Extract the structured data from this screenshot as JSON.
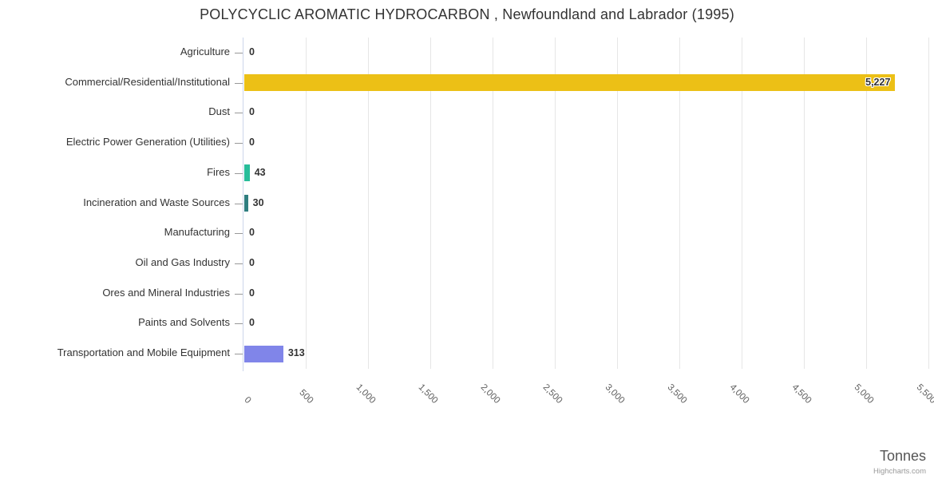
{
  "chart_data": {
    "type": "bar",
    "orientation": "horizontal",
    "title": "POLYCYCLIC AROMATIC HYDROCARBON , Newfoundland and Labrador (1995)",
    "categories": [
      "Agriculture",
      "Commercial/Residential/Institutional",
      "Dust",
      "Electric Power Generation (Utilities)",
      "Fires",
      "Incineration and Waste Sources",
      "Manufacturing",
      "Oil and Gas Industry",
      "Ores and Mineral Industries",
      "Paints and Solvents",
      "Transportation and Mobile Equipment"
    ],
    "values": [
      0,
      5227,
      0,
      0,
      43,
      30,
      0,
      0,
      0,
      0,
      313
    ],
    "value_labels": [
      "0",
      "5,227",
      "0",
      "0",
      "43",
      "30",
      "0",
      "0",
      "0",
      "0",
      "313"
    ],
    "bar_colors": [
      null,
      "#ecc016",
      null,
      null,
      "#28bd9a",
      "#2f7e80",
      null,
      null,
      null,
      null,
      "#8085e9"
    ],
    "xlabel": "Tonnes",
    "ylabel": "",
    "xlim": [
      0,
      5500
    ],
    "x_ticks": [
      0,
      500,
      1000,
      1500,
      2000,
      2500,
      3000,
      3500,
      4000,
      4500,
      5000,
      5500
    ],
    "x_tick_labels": [
      "0",
      "500",
      "1,000",
      "1,500",
      "2,000",
      "2,500",
      "3,000",
      "3,500",
      "4,000",
      "4,500",
      "5,000",
      "5,500"
    ],
    "grid": "vertical-only",
    "legend": "none",
    "credit": "Highcharts.com"
  },
  "colors": {
    "background": "#ffffff",
    "title_text": "#333333",
    "category_label": "#333333",
    "x_tick_label": "#606060",
    "data_label": "#333333",
    "gridline": "#e6e6e6",
    "axis_line": "#ccd6eb",
    "category_tick": "#999999",
    "axis_title": "#555555",
    "credit": "#999999"
  }
}
